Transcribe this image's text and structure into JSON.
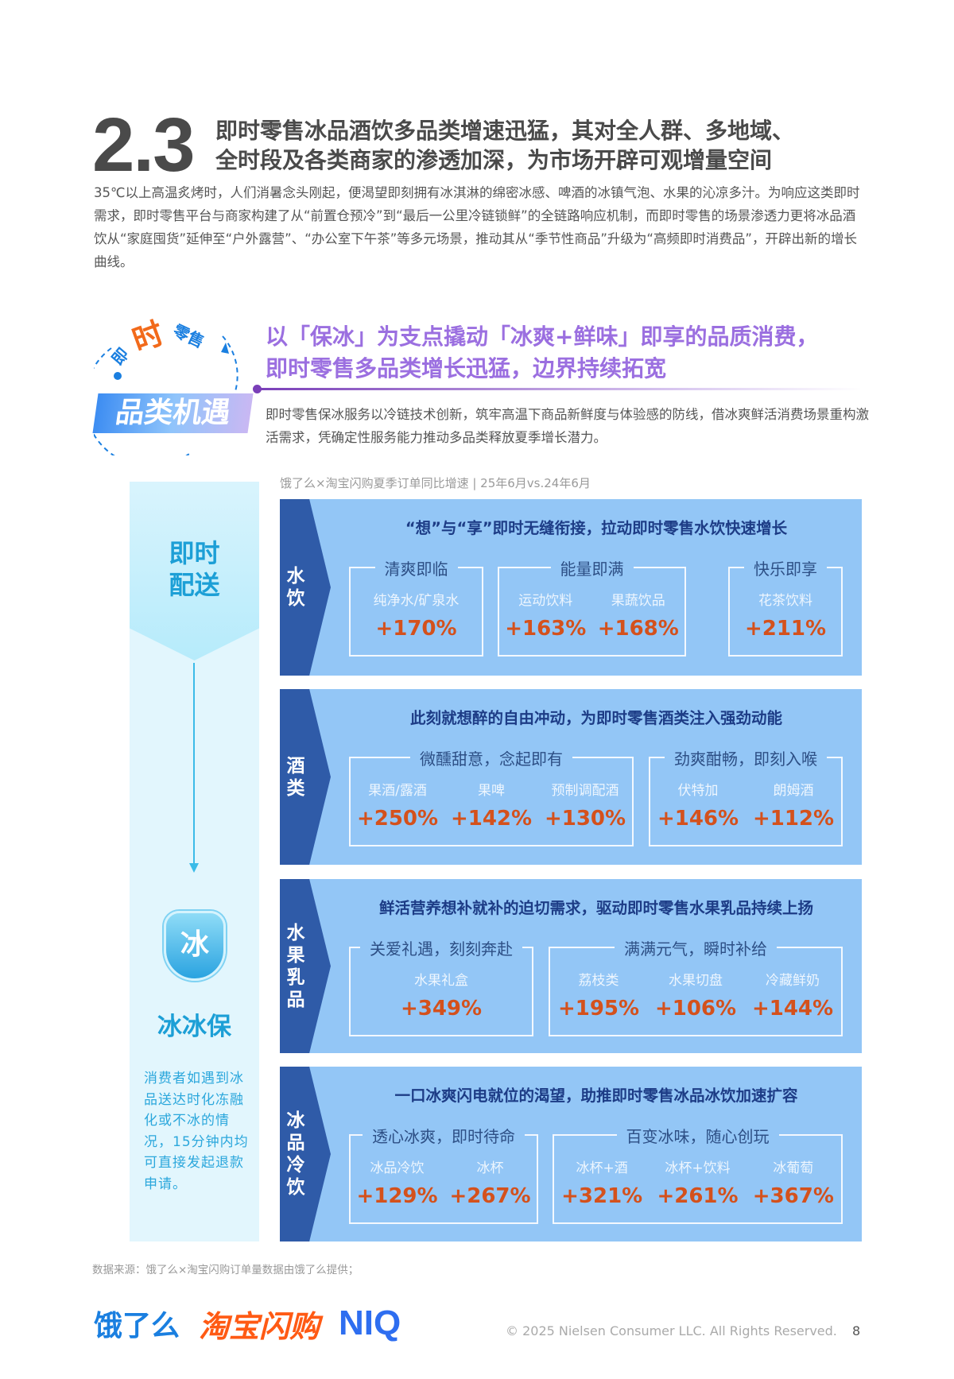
{
  "section": {
    "number": "2.3",
    "title_lines": [
      "即时零售冰品酒饮多品类增速迅猛，其对全人群、多地域、",
      "全时段及各类商家的渗透加深，为市场开辟可观增量空间"
    ],
    "intro": "35℃以上高温炙烤时，人们消暑念头刚起，便渴望即刻拥有冰淇淋的绵密冰感、啤酒的冰镇气泡、水果的沁凉多汁。为响应这类即时需求，即时零售平台与商家构建了从“前置仓预冷”到“最后一公里冷链锁鲜”的全链路响应机制，而即时零售的场景渗透力更将冰品酒饮从“家庭囤货”延伸至“户外露营”、“办公室下午茶”等多元场景，推动其从“季节性商品”升级为“高频即时消费品”，开辟出新的增长曲线。"
  },
  "badge": {
    "arc_text_1": "即",
    "arc_text_2": "时",
    "arc_text_3": "零售",
    "label": "品类机遇"
  },
  "highlight": {
    "title_lines": [
      "以「保冰」为支点撬动「冰爽+鲜味」即享的品质消费，",
      "即时零售多品类增长迅猛，边界持续拓宽"
    ],
    "text": "即时零售保冰服务以冷链技术创新，筑牢高温下商品新鲜度与体验感的防线，借冰爽鲜活消费场景重构激活需求，凭确定性服务能力推动多品类释放夏季增长潜力。"
  },
  "left_column": {
    "heading_lines": [
      "即时",
      "配送"
    ],
    "shield_char": "冰",
    "name": "冰冰保",
    "description": "消费者如遇到冰品送达时化冻融化或不冰的情况，15分钟内均可直接发起退款申请。"
  },
  "caption": "饿了么×淘宝闪购夏季订单同比增速 | 25年6月vs.24年6月",
  "panels": [
    {
      "category": "水饮",
      "heading": "“想”与“享”即时无缝衔接，拉动即时零售水饮快速增长",
      "groups": [
        {
          "title": "清爽即临",
          "items": [
            {
              "label": "纯净水/矿泉水",
              "value": "+170%"
            }
          ]
        },
        {
          "title": "能量即满",
          "items": [
            {
              "label": "运动饮料",
              "value": "+163%"
            },
            {
              "label": "果蔬饮品",
              "value": "+168%"
            }
          ]
        },
        {
          "title": "快乐即享",
          "items": [
            {
              "label": "花茶饮料",
              "value": "+211%"
            }
          ]
        }
      ]
    },
    {
      "category": "酒类",
      "heading": "此刻就想醉的自由冲动，为即时零售酒类注入强劲动能",
      "groups": [
        {
          "title": "微醺甜意，念起即有",
          "items": [
            {
              "label": "果酒/露酒",
              "value": "+250%"
            },
            {
              "label": "果啤",
              "value": "+142%"
            },
            {
              "label": "预制调配酒",
              "value": "+130%"
            }
          ]
        },
        {
          "title": "劲爽酣畅，即刻入喉",
          "items": [
            {
              "label": "伏特加",
              "value": "+146%"
            },
            {
              "label": "朗姆酒",
              "value": "+112%"
            }
          ]
        }
      ]
    },
    {
      "category": "水果乳品",
      "heading": "鲜活营养想补就补的迫切需求，驱动即时零售水果乳品持续上扬",
      "groups": [
        {
          "title": "关爱礼遇，刻刻奔赴",
          "items": [
            {
              "label": "水果礼盒",
              "value": "+349%"
            }
          ]
        },
        {
          "title": "满满元气，瞬时补给",
          "items": [
            {
              "label": "荔枝类",
              "value": "+195%"
            },
            {
              "label": "水果切盘",
              "value": "+106%"
            },
            {
              "label": "冷藏鲜奶",
              "value": "+144%"
            }
          ]
        }
      ]
    },
    {
      "category": "冰品冷饮",
      "heading": "一口冰爽闪电就位的渴望，助推即时零售冰品冰饮加速扩容",
      "groups": [
        {
          "title": "透心冰爽，即时待命",
          "items": [
            {
              "label": "冰品冷饮",
              "value": "+129%"
            },
            {
              "label": "冰杯",
              "value": "+267%"
            }
          ]
        },
        {
          "title": "百变冰味，随心创玩",
          "items": [
            {
              "label": "冰杯+酒",
              "value": "+321%"
            },
            {
              "label": "冰杯+饮料",
              "value": "+261%"
            },
            {
              "label": "冰葡萄",
              "value": "+367%"
            }
          ]
        }
      ]
    }
  ],
  "source": "数据来源：饿了么×淘宝闪购订单量数据由饿了么提供；",
  "footer": {
    "logos": [
      "饿了么",
      "淘宝闪购",
      "NIQ"
    ],
    "copyright": "© 2025 Nielsen Consumer LLC. All Rights Reserved.",
    "page": "8"
  },
  "colors": {
    "panel": "#93c6f6",
    "band": "#2f5ba8",
    "value": "#d4511c",
    "accent_purple": "#9b6fe0",
    "cyan": "#1c9fd6"
  }
}
